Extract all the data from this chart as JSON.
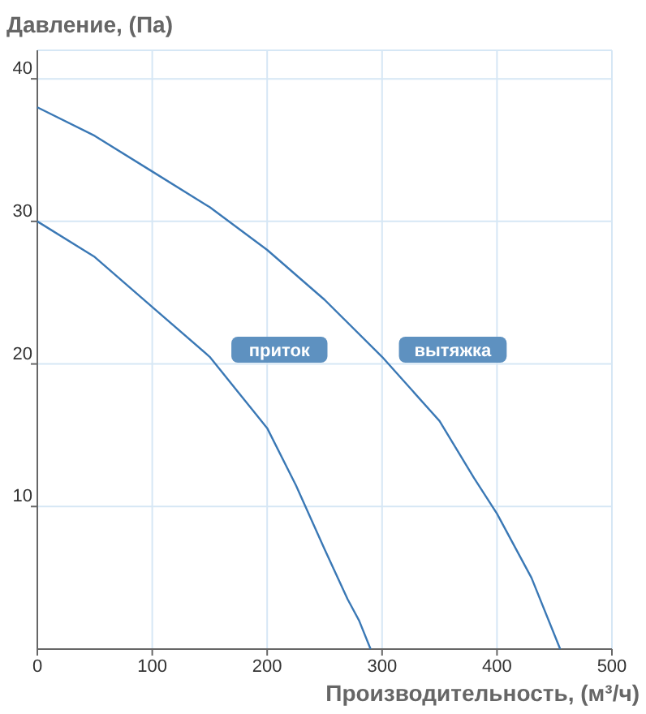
{
  "chart_data": {
    "type": "line",
    "xlabel": "Производительность, (м³/ч)",
    "ylabel": "Давление, (Па)",
    "xlim": [
      0,
      500
    ],
    "ylim": [
      0,
      42
    ],
    "xticks": [
      0,
      100,
      200,
      300,
      400,
      500
    ],
    "yticks": [
      10,
      20,
      30,
      40
    ],
    "grid": true,
    "marker": "none",
    "line_style": "solid",
    "series": [
      {
        "name": "приток",
        "color": "#3a78b5",
        "x": [
          0,
          50,
          100,
          150,
          175,
          200,
          225,
          250,
          270,
          280,
          290
        ],
        "values": [
          30,
          27.5,
          24,
          20.5,
          18,
          15.5,
          11.5,
          7,
          3.5,
          2,
          0
        ]
      },
      {
        "name": "вытяжка",
        "color": "#3a78b5",
        "x": [
          0,
          50,
          100,
          150,
          200,
          250,
          300,
          350,
          380,
          400,
          430,
          455
        ],
        "values": [
          38,
          36,
          33.5,
          31,
          28,
          24.5,
          20.5,
          16,
          12,
          9.5,
          5,
          0
        ]
      }
    ]
  }
}
